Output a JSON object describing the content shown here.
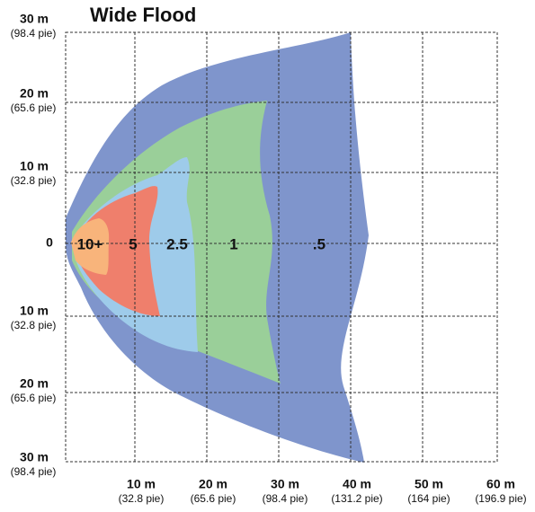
{
  "title": "Wide Flood",
  "zero": "0",
  "y_labels": [
    {
      "main": "30 m",
      "sub": "(98.4 pie)"
    },
    {
      "main": "20 m",
      "sub": "(65.6 pie)"
    },
    {
      "main": "10 m",
      "sub": "(32.8 pie)"
    },
    {
      "main": "10 m",
      "sub": "(32.8 pie)"
    },
    {
      "main": "20 m",
      "sub": "(65.6 pie)"
    },
    {
      "main": "30 m",
      "sub": "(98.4 pie)"
    }
  ],
  "x_labels": [
    {
      "main": "10 m",
      "sub": "(32.8 pie)"
    },
    {
      "main": "20 m",
      "sub": "(65.6 pie)"
    },
    {
      "main": "30 m",
      "sub": "(98.4 pie)"
    },
    {
      "main": "40 m",
      "sub": "(131.2 pie)"
    },
    {
      "main": "50 m",
      "sub": "(164 pie)"
    },
    {
      "main": "60 m",
      "sub": "(196.9 pie)"
    }
  ],
  "zones": [
    "10+",
    "5",
    "2.5",
    "1",
    ".5"
  ]
}
